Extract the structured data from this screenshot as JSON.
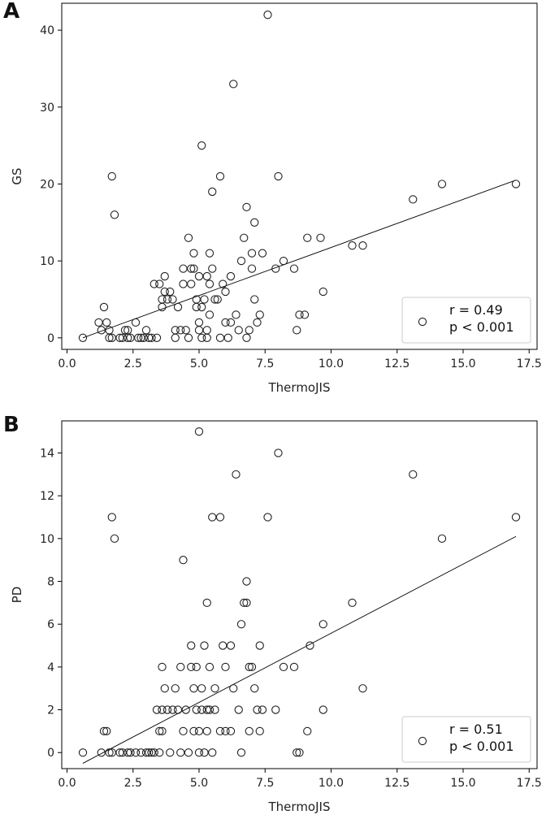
{
  "chart_data": [
    {
      "type": "scatter",
      "panel_label": "A",
      "xlabel": "ThermoJIS",
      "ylabel": "GS",
      "xlim": [
        -0.2,
        17.8
      ],
      "ylim": [
        -1.5,
        43.5
      ],
      "xticks": [
        0.0,
        2.5,
        5.0,
        7.5,
        10.0,
        12.5,
        15.0,
        17.5
      ],
      "xtick_labels": [
        "0.0",
        "2.5",
        "5.0",
        "7.5",
        "10.0",
        "12.5",
        "15.0",
        "17.5"
      ],
      "yticks": [
        0,
        10,
        20,
        30,
        40
      ],
      "ytick_labels": [
        "0",
        "10",
        "20",
        "30",
        "40"
      ],
      "fit_line": {
        "x0": 0.6,
        "y0": 0.0,
        "x1": 17.0,
        "y1": 20.5
      },
      "legend": {
        "position": "lower-right",
        "lines": [
          "r = 0.49",
          "p < 0.001"
        ]
      },
      "points": [
        [
          0.6,
          0
        ],
        [
          1.2,
          2
        ],
        [
          1.3,
          1
        ],
        [
          1.4,
          4
        ],
        [
          1.5,
          2
        ],
        [
          1.6,
          0
        ],
        [
          1.7,
          0
        ],
        [
          1.6,
          1
        ],
        [
          1.7,
          21
        ],
        [
          1.8,
          16
        ],
        [
          2.0,
          0
        ],
        [
          2.1,
          0
        ],
        [
          2.2,
          1
        ],
        [
          2.3,
          0
        ],
        [
          2.3,
          1
        ],
        [
          2.4,
          0
        ],
        [
          2.6,
          2
        ],
        [
          2.7,
          0
        ],
        [
          2.8,
          0
        ],
        [
          2.9,
          0
        ],
        [
          3.0,
          1
        ],
        [
          3.1,
          0
        ],
        [
          3.2,
          0
        ],
        [
          3.3,
          7
        ],
        [
          3.4,
          0
        ],
        [
          3.5,
          7
        ],
        [
          3.6,
          5
        ],
        [
          3.6,
          4
        ],
        [
          3.7,
          6
        ],
        [
          3.7,
          8
        ],
        [
          3.8,
          5
        ],
        [
          3.9,
          6
        ],
        [
          4.0,
          5
        ],
        [
          4.1,
          1
        ],
        [
          4.1,
          0
        ],
        [
          4.2,
          4
        ],
        [
          4.3,
          1
        ],
        [
          4.4,
          7
        ],
        [
          4.4,
          9
        ],
        [
          4.5,
          1
        ],
        [
          4.6,
          0
        ],
        [
          4.6,
          13
        ],
        [
          4.7,
          7
        ],
        [
          4.7,
          9
        ],
        [
          4.8,
          9
        ],
        [
          4.8,
          11
        ],
        [
          4.9,
          5
        ],
        [
          4.9,
          4
        ],
        [
          5.0,
          1
        ],
        [
          5.0,
          2
        ],
        [
          5.0,
          8
        ],
        [
          5.1,
          4
        ],
        [
          5.1,
          0
        ],
        [
          5.1,
          25
        ],
        [
          5.2,
          5
        ],
        [
          5.3,
          0
        ],
        [
          5.3,
          1
        ],
        [
          5.3,
          8
        ],
        [
          5.4,
          3
        ],
        [
          5.4,
          7
        ],
        [
          5.4,
          11
        ],
        [
          5.5,
          9
        ],
        [
          5.5,
          19
        ],
        [
          5.6,
          5
        ],
        [
          5.7,
          5
        ],
        [
          5.8,
          0
        ],
        [
          5.8,
          21
        ],
        [
          5.9,
          7
        ],
        [
          6.0,
          6
        ],
        [
          6.0,
          2
        ],
        [
          6.1,
          0
        ],
        [
          6.2,
          2
        ],
        [
          6.2,
          8
        ],
        [
          6.3,
          33
        ],
        [
          6.4,
          3
        ],
        [
          6.5,
          1
        ],
        [
          6.6,
          10
        ],
        [
          6.7,
          13
        ],
        [
          6.8,
          17
        ],
        [
          6.8,
          0
        ],
        [
          6.9,
          1
        ],
        [
          7.0,
          9
        ],
        [
          7.0,
          11
        ],
        [
          7.1,
          5
        ],
        [
          7.1,
          15
        ],
        [
          7.2,
          2
        ],
        [
          7.3,
          3
        ],
        [
          7.4,
          11
        ],
        [
          7.6,
          42
        ],
        [
          7.9,
          9
        ],
        [
          8.0,
          21
        ],
        [
          8.2,
          10
        ],
        [
          8.6,
          9
        ],
        [
          8.7,
          1
        ],
        [
          8.8,
          3
        ],
        [
          9.0,
          3
        ],
        [
          9.1,
          13
        ],
        [
          9.6,
          13
        ],
        [
          9.7,
          6
        ],
        [
          10.8,
          12
        ],
        [
          11.2,
          12
        ],
        [
          13.1,
          18
        ],
        [
          14.2,
          20
        ],
        [
          17.0,
          20
        ]
      ]
    },
    {
      "type": "scatter",
      "panel_label": "B",
      "xlabel": "ThermoJIS",
      "ylabel": "PD",
      "xlim": [
        -0.2,
        17.8
      ],
      "ylim": [
        -0.75,
        15.5
      ],
      "xticks": [
        0.0,
        2.5,
        5.0,
        7.5,
        10.0,
        12.5,
        15.0,
        17.5
      ],
      "xtick_labels": [
        "0.0",
        "2.5",
        "5.0",
        "7.5",
        "10.0",
        "12.5",
        "15.0",
        "17.5"
      ],
      "yticks": [
        0,
        2,
        4,
        6,
        8,
        10,
        12,
        14
      ],
      "ytick_labels": [
        "0",
        "2",
        "4",
        "6",
        "8",
        "10",
        "12",
        "14"
      ],
      "fit_line": {
        "x0": 0.6,
        "y0": -0.5,
        "x1": 17.0,
        "y1": 10.1
      },
      "legend": {
        "position": "lower-right",
        "lines": [
          "r = 0.51",
          "p < 0.001"
        ]
      },
      "points": [
        [
          0.6,
          0
        ],
        [
          1.3,
          0
        ],
        [
          1.4,
          1
        ],
        [
          1.5,
          1
        ],
        [
          1.6,
          0
        ],
        [
          1.7,
          0
        ],
        [
          1.7,
          11
        ],
        [
          1.8,
          10
        ],
        [
          2.0,
          0
        ],
        [
          2.1,
          0
        ],
        [
          2.3,
          0
        ],
        [
          2.4,
          0
        ],
        [
          2.6,
          0
        ],
        [
          2.8,
          0
        ],
        [
          3.0,
          0
        ],
        [
          3.1,
          0
        ],
        [
          3.2,
          0
        ],
        [
          3.3,
          0
        ],
        [
          3.4,
          2
        ],
        [
          3.5,
          1
        ],
        [
          3.5,
          0
        ],
        [
          3.6,
          1
        ],
        [
          3.6,
          2
        ],
        [
          3.6,
          4
        ],
        [
          3.7,
          3
        ],
        [
          3.8,
          2
        ],
        [
          3.9,
          0
        ],
        [
          4.0,
          2
        ],
        [
          4.1,
          3
        ],
        [
          4.2,
          2
        ],
        [
          4.3,
          0
        ],
        [
          4.3,
          4
        ],
        [
          4.4,
          1
        ],
        [
          4.4,
          9
        ],
        [
          4.5,
          2
        ],
        [
          4.6,
          0
        ],
        [
          4.7,
          4
        ],
        [
          4.7,
          5
        ],
        [
          4.8,
          1
        ],
        [
          4.8,
          3
        ],
        [
          4.9,
          4
        ],
        [
          4.9,
          2
        ],
        [
          5.0,
          0
        ],
        [
          5.0,
          1
        ],
        [
          5.0,
          15
        ],
        [
          5.1,
          3
        ],
        [
          5.1,
          2
        ],
        [
          5.2,
          0
        ],
        [
          5.2,
          5
        ],
        [
          5.3,
          1
        ],
        [
          5.3,
          2
        ],
        [
          5.3,
          7
        ],
        [
          5.4,
          2
        ],
        [
          5.4,
          4
        ],
        [
          5.5,
          0
        ],
        [
          5.5,
          11
        ],
        [
          5.6,
          3
        ],
        [
          5.6,
          2
        ],
        [
          5.8,
          1
        ],
        [
          5.8,
          11
        ],
        [
          5.9,
          5
        ],
        [
          6.0,
          4
        ],
        [
          6.0,
          1
        ],
        [
          6.2,
          5
        ],
        [
          6.2,
          1
        ],
        [
          6.3,
          3
        ],
        [
          6.4,
          13
        ],
        [
          6.5,
          2
        ],
        [
          6.6,
          0
        ],
        [
          6.6,
          6
        ],
        [
          6.7,
          7
        ],
        [
          6.8,
          8
        ],
        [
          6.8,
          7
        ],
        [
          6.9,
          1
        ],
        [
          6.9,
          4
        ],
        [
          7.0,
          4
        ],
        [
          7.1,
          3
        ],
        [
          7.2,
          2
        ],
        [
          7.3,
          5
        ],
        [
          7.3,
          1
        ],
        [
          7.4,
          2
        ],
        [
          7.6,
          11
        ],
        [
          7.9,
          2
        ],
        [
          8.0,
          14
        ],
        [
          8.2,
          4
        ],
        [
          8.6,
          4
        ],
        [
          8.7,
          0
        ],
        [
          8.8,
          0
        ],
        [
          9.1,
          1
        ],
        [
          9.2,
          5
        ],
        [
          9.7,
          6
        ],
        [
          9.7,
          2
        ],
        [
          10.8,
          7
        ],
        [
          11.2,
          3
        ],
        [
          13.1,
          13
        ],
        [
          14.2,
          10
        ],
        [
          17.0,
          11
        ]
      ]
    }
  ]
}
